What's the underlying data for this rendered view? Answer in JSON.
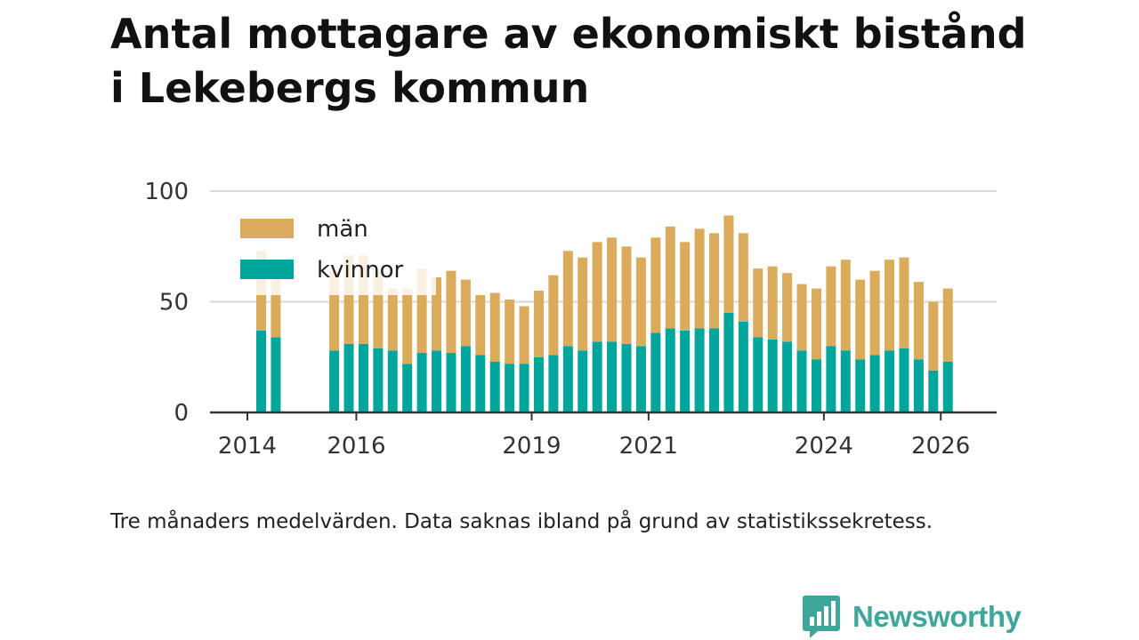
{
  "title": {
    "line1": "Antal mottagare av ekonomiskt bistånd",
    "line2": "i Lekebergs kommun"
  },
  "caption": "Tre månaders medelvärden. Data saknas ibland på grund av statistikssekretess.",
  "brand": {
    "name": "Newsworthy",
    "icon": "newsworthy-logo-icon",
    "color": "#3fa79a"
  },
  "chart_data": {
    "type": "bar",
    "stacked": true,
    "title": "Antal mottagare av ekonomiskt bistånd i Lekebergs kommun",
    "xlabel": "",
    "ylabel": "",
    "ylim": [
      0,
      100
    ],
    "yticks": [
      0,
      50,
      100
    ],
    "grid": true,
    "legend_position": "top-left",
    "x_tick_labels": [
      {
        "label": "2014",
        "index": -1
      },
      {
        "label": "2016",
        "index": 7
      },
      {
        "label": "2019",
        "index": 19
      },
      {
        "label": "2021",
        "index": 27
      },
      {
        "label": "2024",
        "index": 39
      },
      {
        "label": "2026",
        "index": 47
      }
    ],
    "series": [
      {
        "name": "kvinnor",
        "color": "#00a69c",
        "values": [
          37,
          34,
          null,
          null,
          null,
          28,
          31,
          31,
          29,
          28,
          22,
          27,
          28,
          27,
          30,
          26,
          23,
          22,
          22,
          25,
          26,
          30,
          28,
          32,
          32,
          31,
          30,
          36,
          38,
          37,
          38,
          38,
          45,
          41,
          34,
          33,
          32,
          28,
          24,
          30,
          28,
          24,
          26,
          28,
          29,
          24,
          19,
          23
        ]
      },
      {
        "name": "män",
        "color": "#dbab5c",
        "values": [
          36,
          27,
          null,
          null,
          null,
          36,
          40,
          40,
          35,
          28,
          34,
          38,
          33,
          37,
          30,
          27,
          31,
          29,
          26,
          30,
          36,
          43,
          42,
          45,
          47,
          44,
          40,
          43,
          46,
          40,
          45,
          43,
          44,
          40,
          31,
          33,
          31,
          30,
          32,
          36,
          41,
          36,
          38,
          41,
          41,
          35,
          31,
          33
        ]
      }
    ]
  }
}
